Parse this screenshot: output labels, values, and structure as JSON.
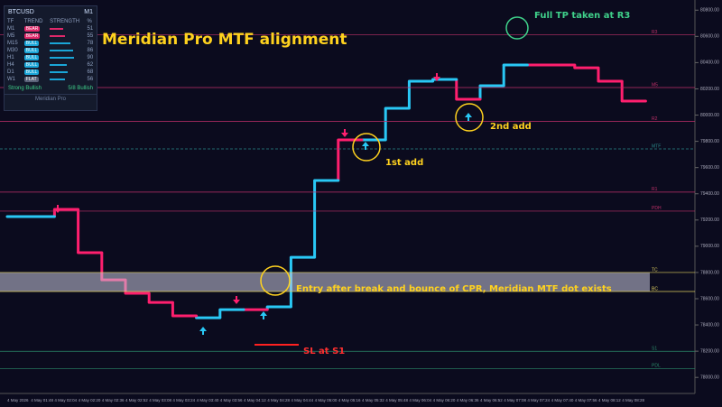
{
  "chart_data": {
    "type": "line",
    "title": "Meridian Pro MTF alignment",
    "categories": [
      "4 May 2026",
      "4 May 01:48",
      "4 May 02:04",
      "4 May 02:20",
      "4 May 02:36",
      "4 May 02:52",
      "4 May 03:08",
      "4 May 03:24",
      "4 May 03:40",
      "4 May 03:56",
      "4 May 04:12",
      "4 May 04:28",
      "4 May 04:44",
      "4 May 05:00",
      "4 May 05:16",
      "4 May 05:32",
      "4 May 05:48",
      "4 May 06:04",
      "4 May 06:20",
      "4 May 06:36",
      "4 May 06:52",
      "4 May 07:08",
      "4 May 07:24",
      "4 May 07:40",
      "4 May 07:56",
      "4 May 08:12",
      "4 May 08:28"
    ],
    "values": [
      79226,
      79226,
      79281,
      78951,
      78744,
      78641,
      78572,
      78469,
      78455,
      78517,
      78517,
      78538,
      78916,
      79501,
      79811,
      79811,
      80052,
      80258,
      80272,
      80121,
      80224,
      80382,
      80382,
      80382,
      80361,
      80258,
      80107
    ],
    "point_colors": [
      "#29c8f5",
      "#29c8f5",
      "#ff1f6e",
      "#ff1f6e",
      "#ff1f6e",
      "#ff1f6e",
      "#ff1f6e",
      "#ff1f6e",
      "#29c8f5",
      "#29c8f5",
      "#ff1f6e",
      "#29c8f5",
      "#29c8f5",
      "#29c8f5",
      "#ff1f6e",
      "#29c8f5",
      "#29c8f5",
      "#29c8f5",
      "#29c8f5",
      "#ff1f6e",
      "#29c8f5",
      "#29c8f5",
      "#ff1f6e",
      "#ff1f6e",
      "#ff1f6e",
      "#ff1f6e",
      "#ff1f6e"
    ],
    "ylim": [
      77850,
      80850
    ],
    "yticks": [
      {
        "value": 78000,
        "label": "78000.00"
      },
      {
        "value": 78200,
        "label": "78200.00"
      },
      {
        "value": 78400,
        "label": "78400.00"
      },
      {
        "value": 78600,
        "label": "78600.00"
      },
      {
        "value": 78800,
        "label": "78800.00"
      },
      {
        "value": 79000,
        "label": "79000.00"
      },
      {
        "value": 79200,
        "label": "79200.00"
      },
      {
        "value": 79400,
        "label": "79400.00"
      },
      {
        "value": 79600,
        "label": "79600.00"
      },
      {
        "value": 79800,
        "label": "79800.00"
      },
      {
        "value": 80000,
        "label": "80000.00"
      },
      {
        "value": 80200,
        "label": "80200.00"
      },
      {
        "value": 80400,
        "label": "80400.00"
      },
      {
        "value": 80600,
        "label": "80600.00"
      },
      {
        "value": 80800,
        "label": "80800.00"
      }
    ],
    "levels": [
      {
        "label": "R3",
        "value": 80613,
        "color": "#c0306a"
      },
      {
        "label": "M5",
        "value": 80210,
        "color": "#c0306a"
      },
      {
        "label": "R2",
        "value": 79951,
        "color": "#c0306a"
      },
      {
        "label": "MTF",
        "value": 79742,
        "color": "#2a8a8a"
      },
      {
        "label": "R1",
        "value": 79413,
        "color": "#c0306a"
      },
      {
        "label": "PDH",
        "value": 79268,
        "color": "#c0306a"
      },
      {
        "label": "TC",
        "value": 78800,
        "color": "#e0d060"
      },
      {
        "label": "BC",
        "value": 78655,
        "color": "#e0d060"
      },
      {
        "label": "S1",
        "value": 78199,
        "color": "#2a8a6a"
      },
      {
        "label": "PDL",
        "value": 78068,
        "color": "#2a8a6a"
      }
    ],
    "annotations": [
      "Full TP taken at R3",
      "1st add",
      "2nd add",
      "Entry after break and bounce of CPR, Meridian MTF dot exists",
      "SL at S1"
    ]
  },
  "panel": {
    "symbol": "BTCUSD",
    "timeframe": "M1",
    "headers": [
      "TF",
      "TREND",
      "STRENGTH",
      "%"
    ],
    "rows": [
      [
        "M1",
        "BEAR",
        "51"
      ],
      [
        "M5",
        "BEAR",
        "55"
      ],
      [
        "M15",
        "BULL",
        "78"
      ],
      [
        "M30",
        "BULL",
        "86"
      ],
      [
        "H1",
        "BULL",
        "90"
      ],
      [
        "H4",
        "BULL",
        "62"
      ],
      [
        "D1",
        "BULL",
        "68"
      ],
      [
        "W1",
        "FLAT",
        "56"
      ]
    ],
    "status": "Strong Bullish",
    "count": "5/8 Bullish",
    "brand": "Meridian Pro"
  }
}
